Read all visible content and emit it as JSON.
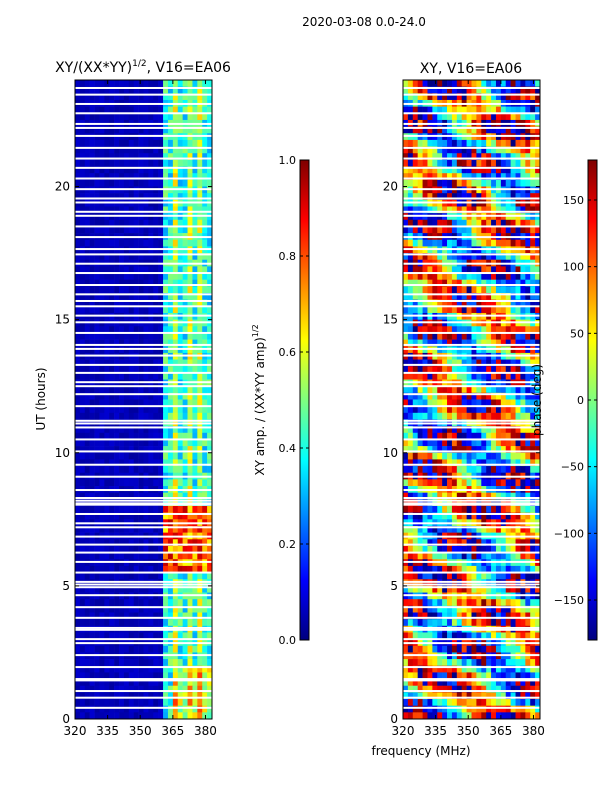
{
  "figure_title": "2020-03-08 0.0-24.0",
  "shared_xlabel": "frequency (MHz)",
  "colors": {
    "background": "#ffffff",
    "jet_stops": [
      "#00007f",
      "#0000ff",
      "#007fff",
      "#00ffff",
      "#7fff7f",
      "#ffff00",
      "#ff7f00",
      "#ff0000",
      "#7f0000"
    ],
    "flag_lines": "#ffffff"
  },
  "chart_data": [
    {
      "type": "heatmap",
      "title_main": "XY/(XX*YY)",
      "title_sup": "1/2",
      "title_rest": ", V16=EA06",
      "xlabel": "",
      "ylabel": "UT (hours)",
      "xlim": [
        320,
        383
      ],
      "ylim": [
        0,
        24
      ],
      "x_ticks": [
        320,
        335,
        350,
        365,
        380
      ],
      "x_tick_labels": [
        "320",
        "335",
        "350",
        "365",
        "380"
      ],
      "y_ticks": [
        0,
        5,
        10,
        15,
        20
      ],
      "y_tick_labels": [
        "0",
        "5",
        "10",
        "15",
        "20"
      ],
      "colorbar": {
        "label_main": "XY amp. / (XX*YY amp)",
        "label_sup": "1/2",
        "range": [
          0.0,
          1.0
        ],
        "ticks": [
          0.0,
          0.2,
          0.4,
          0.6,
          0.8,
          1.0
        ],
        "tick_labels": [
          "0.0",
          "0.2",
          "0.4",
          "0.6",
          "0.8",
          "1.0"
        ]
      },
      "description": "normalized XY amplitude; low (~0.05) across 320-360 MHz, elevated 0.3-0.5 in 360-383 MHz band, peaks ~0.7-0.9 near 6-8 UT"
    },
    {
      "type": "heatmap",
      "title_main": "XY, V16=EA06",
      "xlabel": "frequency (MHz)",
      "ylabel": "",
      "xlim": [
        320,
        383
      ],
      "ylim": [
        0,
        24
      ],
      "x_ticks": [
        320,
        335,
        350,
        365,
        380
      ],
      "x_tick_labels": [
        "320",
        "335",
        "350",
        "365",
        "380"
      ],
      "y_ticks": [
        0,
        5,
        10,
        15,
        20
      ],
      "y_tick_labels": [
        "0",
        "5",
        "10",
        "15",
        "20"
      ],
      "colorbar": {
        "label": "phase (deg)",
        "range": [
          -180,
          180
        ],
        "ticks": [
          -150,
          -100,
          -50,
          0,
          50,
          100,
          150
        ],
        "tick_labels": [
          "−150",
          "−100",
          "−50",
          "0",
          "50",
          "100",
          "150"
        ]
      },
      "description": "XY phase in degrees, noisy and varying with time and frequency"
    }
  ],
  "flagged_ut_hours": [
    0.42,
    0.8,
    1.05,
    1.45,
    1.5,
    1.95,
    2.4,
    2.85,
    3.0,
    3.35,
    3.42,
    3.8,
    4.2,
    4.65,
    4.95,
    5.05,
    5.15,
    5.5,
    5.9,
    6.25,
    6.55,
    6.85,
    7.2,
    7.35,
    7.7,
    8.05,
    8.1,
    8.2,
    8.3,
    8.6,
    9.1,
    9.55,
    10.05,
    10.5,
    10.95,
    11.1,
    11.2,
    11.75,
    12.2,
    12.5,
    12.65,
    13.0,
    13.3,
    13.65,
    13.9,
    14.05,
    14.5,
    14.9,
    15.15,
    15.5,
    15.7,
    15.95,
    16.3,
    16.75,
    17.1,
    17.45,
    17.65,
    18.1,
    18.5,
    18.9,
    19.05,
    19.4,
    19.55,
    19.9,
    20.3,
    20.7,
    21.05,
    21.45,
    21.9,
    22.2,
    22.35,
    22.75,
    23.1,
    23.45,
    23.7
  ]
}
